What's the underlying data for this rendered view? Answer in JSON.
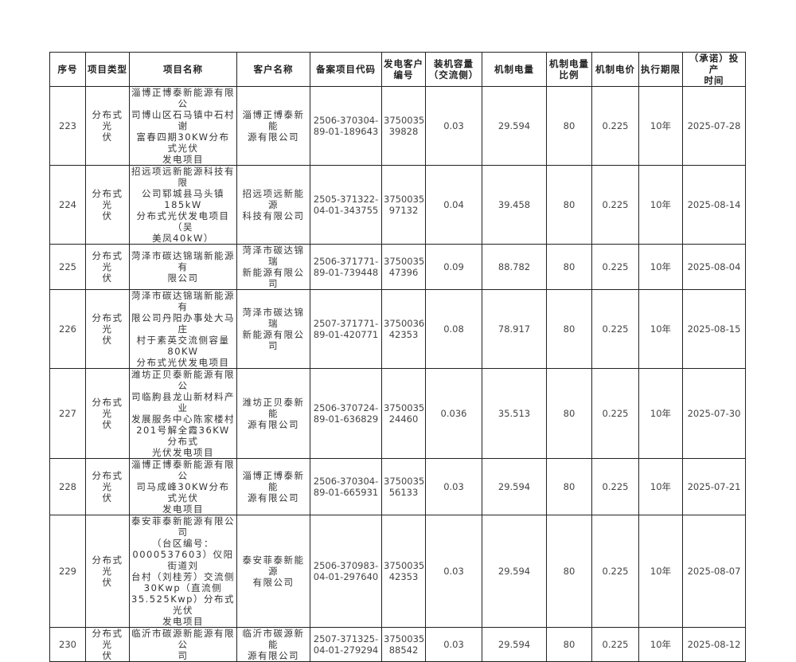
{
  "table": {
    "headers": [
      "序号",
      "项目类型",
      "项目名称",
      "客户名称",
      "备案项目代码",
      "发电客户\n编号",
      "装机容量\n（交流侧）",
      "机制电量",
      "机制电量\n比例",
      "机制电价",
      "执行期限",
      "（承诺）投产\n时间"
    ],
    "rows": [
      [
        "223",
        "分布式光\n伏",
        "淄博正博泰新能源有限公\n司博山区石马镇中石村谢\n富春四期30KW分布式光伏\n发电项目",
        "淄博正博泰新能\n源有限公司",
        "2506-370304-\n89-01-189643",
        "37500353\n39828",
        "0.03",
        "29.594",
        "80",
        "0.225",
        "10年",
        "2025-07-28"
      ],
      [
        "224",
        "分布式光\n伏",
        "招远项远新能源科技有限\n公司郓城县马头镇185kW\n分布式光伏发电项目（吴\n美凤40kW）",
        "招远项远新能源\n科技有限公司",
        "2505-371322-\n04-01-343755",
        "37500356\n97132",
        "0.04",
        "39.458",
        "80",
        "0.225",
        "10年",
        "2025-08-14"
      ],
      [
        "225",
        "分布式光\n伏",
        "菏泽市碳达锦瑞新能源有\n限公司",
        "菏泽市碳达锦瑞\n新能源有限公司",
        "2506-371771-\n89-01-739448",
        "37500357\n47396",
        "0.09",
        "88.782",
        "80",
        "0.225",
        "10年",
        "2025-08-04"
      ],
      [
        "226",
        "分布式光\n伏",
        "菏泽市碳达锦瑞新能源有\n限公司丹阳办事处大马庄\n村于素英交流侧容量80KW\n分布式光伏发电项目",
        "菏泽市碳达锦瑞\n新能源有限公司",
        "2507-371771-\n89-01-420771",
        "37500360\n42353",
        "0.08",
        "78.917",
        "80",
        "0.225",
        "10年",
        "2025-08-15"
      ],
      [
        "227",
        "分布式光\n伏",
        "潍坊正贝泰新能源有限公\n司临朐县龙山新材料产业\n发展服务中心陈家楼村\n201号解全霞36KW分布式\n光伏发电项目",
        "潍坊正贝泰新能\n源有限公司",
        "2506-370724-\n89-01-636829",
        "37500350\n24460",
        "0.036",
        "35.513",
        "80",
        "0.225",
        "10年",
        "2025-07-30"
      ],
      [
        "228",
        "分布式光\n伏",
        "淄博正博泰新能源有限公\n司马成峰30KW分布式光伏\n发电项目",
        "淄博正博泰新能\n源有限公司",
        "2506-370304-\n89-01-665931",
        "37500353\n56133",
        "0.03",
        "29.594",
        "80",
        "0.225",
        "10年",
        "2025-07-21"
      ],
      [
        "229",
        "分布式光\n伏",
        "泰安菲泰新能源有限公司\n（台区编号：\n0000537603）仪阳街道刘\n台村（刘桂芳）交流侧\n30Kwp（直流侧\n35.525Kwp）分布式光伏\n发电项目",
        "泰安菲泰新能源\n有限公司",
        "2506-370983-\n04-01-297640",
        "37500353\n42353",
        "0.03",
        "29.594",
        "80",
        "0.225",
        "10年",
        "2025-08-07"
      ],
      [
        "230",
        "分布式光\n伏",
        "临沂市碳源新能源有限公\n司",
        "临沂市碳源新能\n源有限公司",
        "2507-371325-\n04-01-279294",
        "37500359\n88542",
        "0.03",
        "29.594",
        "80",
        "0.225",
        "10年",
        "2025-08-12"
      ]
    ]
  }
}
